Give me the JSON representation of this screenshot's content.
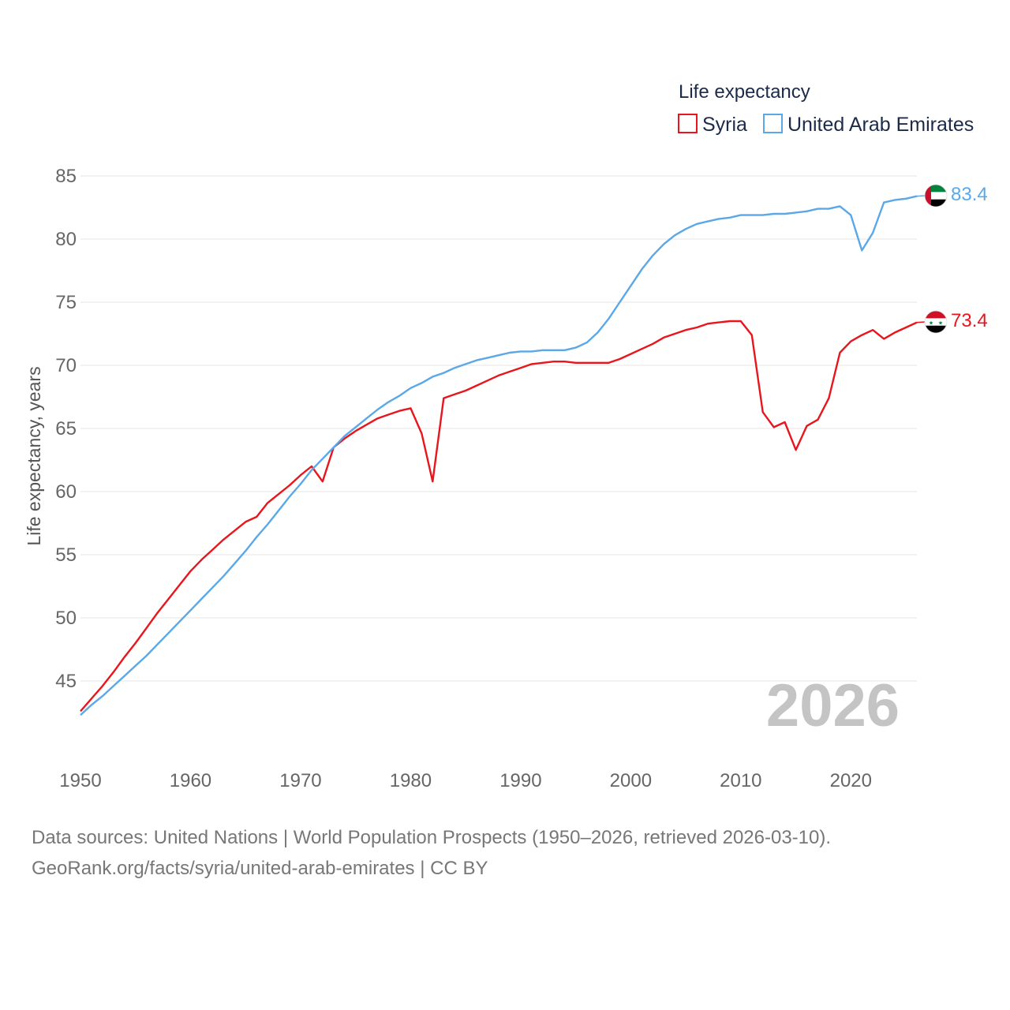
{
  "chart_data": {
    "type": "line",
    "legend_title": "Life expectancy",
    "ylabel": "Life expectancy, years",
    "xlabel": "",
    "xlim": [
      1950,
      2026
    ],
    "ylim": [
      40.5,
      86
    ],
    "y_ticks": [
      45,
      50,
      55,
      60,
      65,
      70,
      75,
      80,
      85
    ],
    "x_ticks": [
      1950,
      1960,
      1970,
      1980,
      1990,
      2000,
      2010,
      2020
    ],
    "legend_position": "top-right",
    "year_label": "2026",
    "x": [
      1950,
      1951,
      1952,
      1953,
      1954,
      1955,
      1956,
      1957,
      1958,
      1959,
      1960,
      1961,
      1962,
      1963,
      1964,
      1965,
      1966,
      1967,
      1968,
      1969,
      1970,
      1971,
      1972,
      1973,
      1974,
      1975,
      1976,
      1977,
      1978,
      1979,
      1980,
      1981,
      1982,
      1983,
      1984,
      1985,
      1986,
      1987,
      1988,
      1989,
      1990,
      1991,
      1992,
      1993,
      1994,
      1995,
      1996,
      1997,
      1998,
      1999,
      2000,
      2001,
      2002,
      2003,
      2004,
      2005,
      2006,
      2007,
      2008,
      2009,
      2010,
      2011,
      2012,
      2013,
      2014,
      2015,
      2016,
      2017,
      2018,
      2019,
      2020,
      2021,
      2022,
      2023,
      2024,
      2025,
      2026
    ],
    "series": [
      {
        "name": "Syria",
        "color": "#e8161c",
        "flag_icon": "syria-flag-icon",
        "end_label": "73.4",
        "values": [
          42.6,
          43.6,
          44.6,
          45.7,
          46.9,
          48.0,
          49.2,
          50.4,
          51.5,
          52.6,
          53.7,
          54.6,
          55.4,
          56.2,
          56.9,
          57.6,
          58.0,
          59.1,
          59.8,
          60.5,
          61.3,
          62.0,
          60.8,
          63.5,
          64.2,
          64.8,
          65.3,
          65.8,
          66.1,
          66.4,
          66.6,
          64.6,
          60.8,
          67.4,
          67.7,
          68.0,
          68.4,
          68.8,
          69.2,
          69.5,
          69.8,
          70.1,
          70.2,
          70.3,
          70.3,
          70.2,
          70.2,
          70.2,
          70.2,
          70.5,
          70.9,
          71.3,
          71.7,
          72.2,
          72.5,
          72.8,
          73.0,
          73.3,
          73.4,
          73.5,
          73.5,
          72.4,
          66.3,
          65.1,
          65.5,
          63.3,
          65.2,
          65.7,
          67.4,
          71.0,
          71.9,
          72.4,
          72.8,
          72.1,
          72.6,
          73.0,
          73.4
        ]
      },
      {
        "name": "United Arab Emirates",
        "color": "#5aa8e8",
        "flag_icon": "uae-flag-icon",
        "end_label": "83.4",
        "values": [
          42.3,
          43.1,
          43.8,
          44.6,
          45.4,
          46.2,
          47.0,
          47.9,
          48.8,
          49.7,
          50.6,
          51.5,
          52.4,
          53.3,
          54.3,
          55.3,
          56.4,
          57.4,
          58.5,
          59.6,
          60.6,
          61.7,
          62.6,
          63.5,
          64.4,
          65.1,
          65.8,
          66.5,
          67.1,
          67.6,
          68.2,
          68.6,
          69.1,
          69.4,
          69.8,
          70.1,
          70.4,
          70.6,
          70.8,
          71.0,
          71.1,
          71.1,
          71.2,
          71.2,
          71.2,
          71.4,
          71.8,
          72.6,
          73.7,
          75.0,
          76.3,
          77.6,
          78.7,
          79.6,
          80.3,
          80.8,
          81.2,
          81.4,
          81.6,
          81.7,
          81.9,
          81.9,
          81.9,
          82.0,
          82.0,
          82.1,
          82.2,
          82.4,
          82.4,
          82.6,
          81.9,
          79.1,
          80.5,
          82.9,
          83.1,
          83.2,
          83.4
        ]
      }
    ],
    "sources": [
      "Data sources: United Nations | World Population Prospects (1950–2026, retrieved 2026-03-10).",
      "GeoRank.org/facts/syria/united-arab-emirates | CC BY"
    ]
  }
}
